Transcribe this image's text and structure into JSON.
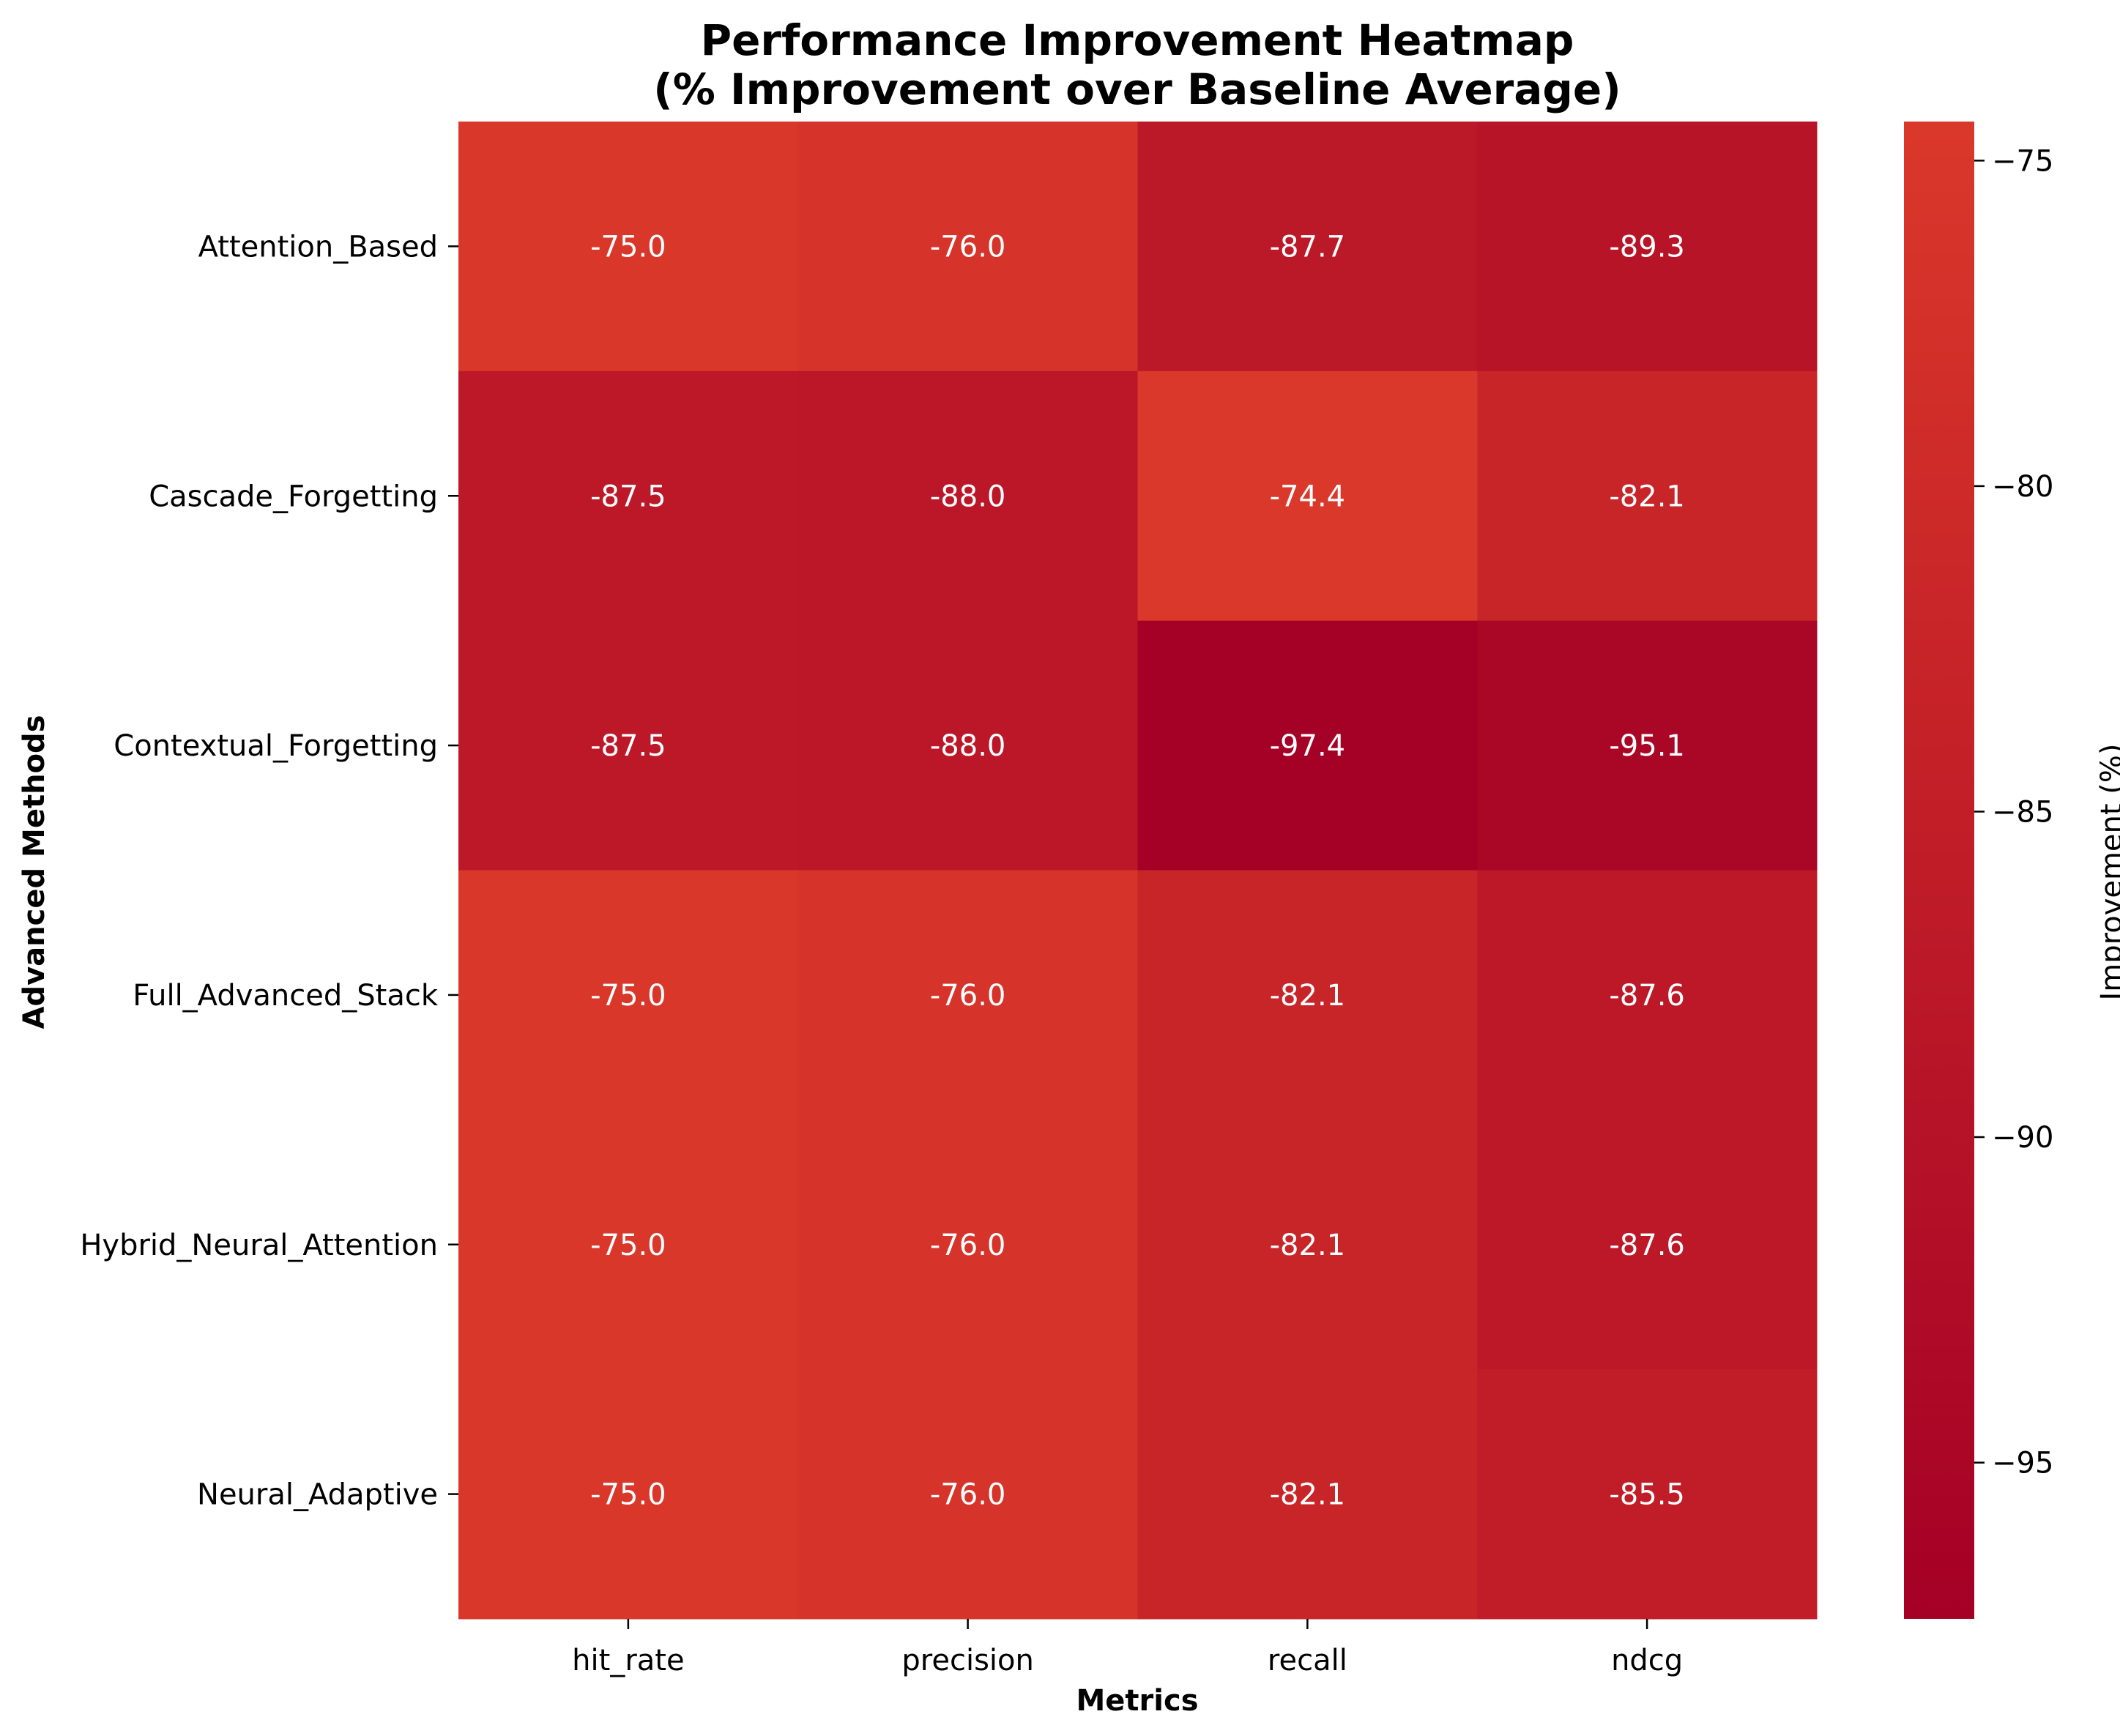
{
  "chart_data": {
    "type": "heatmap",
    "title_lines": [
      "Performance Improvement Heatmap",
      "(% Improvement over Baseline Average)"
    ],
    "xlabel": "Metrics",
    "ylabel": "Advanced Methods",
    "columns": [
      "hit_rate",
      "precision",
      "recall",
      "ndcg"
    ],
    "rows": [
      "Attention_Based",
      "Cascade_Forgetting",
      "Contextual_Forgetting",
      "Full_Advanced_Stack",
      "Hybrid_Neural_Attention",
      "Neural_Adaptive"
    ],
    "values": [
      [
        -75.0,
        -76.0,
        -87.7,
        -89.3
      ],
      [
        -87.5,
        -88.0,
        -74.4,
        -82.1
      ],
      [
        -87.5,
        -88.0,
        -97.4,
        -95.1
      ],
      [
        -75.0,
        -76.0,
        -82.1,
        -87.6
      ],
      [
        -75.0,
        -76.0,
        -82.1,
        -87.6
      ],
      [
        -75.0,
        -76.0,
        -82.1,
        -85.5
      ]
    ],
    "value_labels": [
      [
        "-75.0",
        "-76.0",
        "-87.7",
        "-89.3"
      ],
      [
        "-87.5",
        "-88.0",
        "-74.4",
        "-82.1"
      ],
      [
        "-87.5",
        "-88.0",
        "-97.4",
        "-95.1"
      ],
      [
        "-75.0",
        "-76.0",
        "-82.1",
        "-87.6"
      ],
      [
        "-75.0",
        "-76.0",
        "-82.1",
        "-87.6"
      ],
      [
        "-75.0",
        "-76.0",
        "-82.1",
        "-85.5"
      ]
    ],
    "colorbar": {
      "label": "Improvement (%)",
      "vmin": -97.4,
      "vmax": -74.4,
      "ticks": [
        -75,
        -80,
        -85,
        -90,
        -95
      ],
      "tick_labels": [
        "−75",
        "−80",
        "−85",
        "−90",
        "−95"
      ],
      "color_low": "#a50026",
      "color_high": "#da382a"
    }
  }
}
